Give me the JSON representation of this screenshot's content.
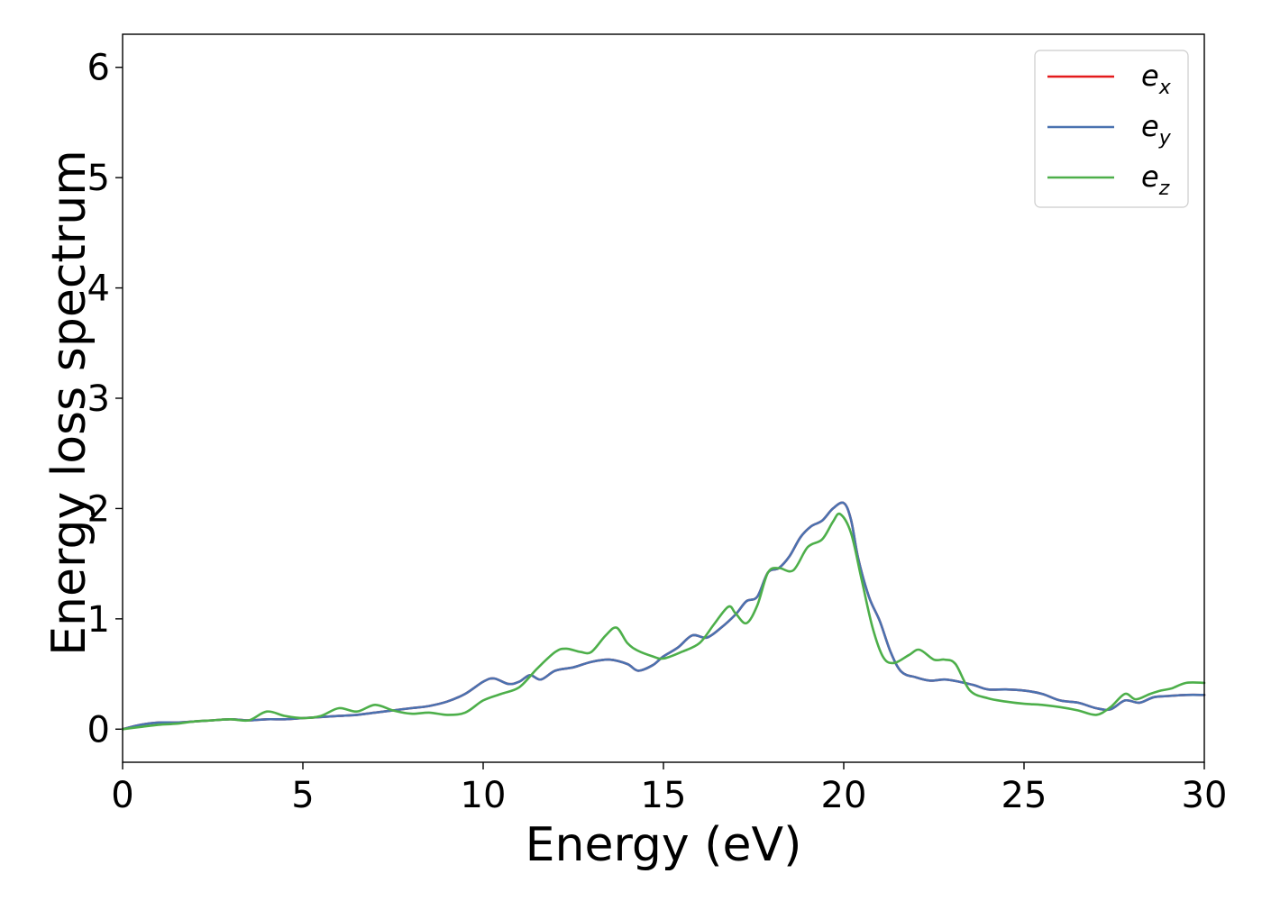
{
  "chart_data": {
    "type": "line",
    "title": "",
    "xlabel": "Energy (eV)",
    "ylabel": "Energy loss spectrum",
    "xlim": [
      0,
      30
    ],
    "ylim": [
      -0.3,
      6.3
    ],
    "xticks": [
      0,
      5,
      10,
      15,
      20,
      25,
      30
    ],
    "yticks": [
      0,
      1,
      2,
      3,
      4,
      5,
      6
    ],
    "grid": false,
    "legend_position": "top-right",
    "series": [
      {
        "name": "e",
        "subscript": "x",
        "color": "#e41a1c",
        "x": [
          0,
          0.5,
          1,
          1.5,
          2,
          2.5,
          3,
          3.5,
          4,
          4.5,
          5,
          5.5,
          6,
          6.5,
          7,
          7.5,
          8,
          8.5,
          9,
          9.5,
          10,
          10.3,
          10.7,
          11,
          11.3,
          11.6,
          12,
          12.5,
          13,
          13.5,
          14,
          14.3,
          14.7,
          15,
          15.4,
          15.8,
          16.2,
          16.6,
          17,
          17.3,
          17.6,
          17.9,
          18.2,
          18.5,
          18.8,
          19.1,
          19.4,
          19.7,
          20,
          20.2,
          20.4,
          20.7,
          21,
          21.3,
          21.6,
          22,
          22.4,
          22.8,
          23.2,
          23.6,
          24,
          24.5,
          25,
          25.5,
          26,
          26.5,
          27,
          27.4,
          27.8,
          28.2,
          28.6,
          29,
          29.5,
          30
        ],
        "y": [
          0.0,
          0.04,
          0.06,
          0.06,
          0.07,
          0.08,
          0.09,
          0.08,
          0.09,
          0.09,
          0.1,
          0.11,
          0.12,
          0.13,
          0.15,
          0.17,
          0.19,
          0.21,
          0.25,
          0.32,
          0.43,
          0.46,
          0.41,
          0.43,
          0.49,
          0.45,
          0.53,
          0.56,
          0.61,
          0.63,
          0.59,
          0.53,
          0.58,
          0.66,
          0.74,
          0.85,
          0.83,
          0.92,
          1.04,
          1.16,
          1.2,
          1.42,
          1.46,
          1.57,
          1.74,
          1.84,
          1.89,
          2.0,
          2.05,
          1.9,
          1.55,
          1.2,
          0.98,
          0.7,
          0.52,
          0.47,
          0.44,
          0.45,
          0.43,
          0.4,
          0.36,
          0.36,
          0.35,
          0.32,
          0.26,
          0.24,
          0.19,
          0.18,
          0.26,
          0.24,
          0.29,
          0.3,
          0.31,
          0.31
        ]
      },
      {
        "name": "e",
        "subscript": "y",
        "color": "#4a72b0",
        "x": [
          0,
          0.5,
          1,
          1.5,
          2,
          2.5,
          3,
          3.5,
          4,
          4.5,
          5,
          5.5,
          6,
          6.5,
          7,
          7.5,
          8,
          8.5,
          9,
          9.5,
          10,
          10.3,
          10.7,
          11,
          11.3,
          11.6,
          12,
          12.5,
          13,
          13.5,
          14,
          14.3,
          14.7,
          15,
          15.4,
          15.8,
          16.2,
          16.6,
          17,
          17.3,
          17.6,
          17.9,
          18.2,
          18.5,
          18.8,
          19.1,
          19.4,
          19.7,
          20,
          20.2,
          20.4,
          20.7,
          21,
          21.3,
          21.6,
          22,
          22.4,
          22.8,
          23.2,
          23.6,
          24,
          24.5,
          25,
          25.5,
          26,
          26.5,
          27,
          27.4,
          27.8,
          28.2,
          28.6,
          29,
          29.5,
          30
        ],
        "y": [
          0.0,
          0.04,
          0.06,
          0.06,
          0.07,
          0.08,
          0.09,
          0.08,
          0.09,
          0.09,
          0.1,
          0.11,
          0.12,
          0.13,
          0.15,
          0.17,
          0.19,
          0.21,
          0.25,
          0.32,
          0.43,
          0.46,
          0.41,
          0.43,
          0.49,
          0.45,
          0.53,
          0.56,
          0.61,
          0.63,
          0.59,
          0.53,
          0.58,
          0.66,
          0.74,
          0.85,
          0.83,
          0.92,
          1.04,
          1.16,
          1.2,
          1.42,
          1.46,
          1.57,
          1.74,
          1.84,
          1.89,
          2.0,
          2.05,
          1.9,
          1.55,
          1.2,
          0.98,
          0.7,
          0.52,
          0.47,
          0.44,
          0.45,
          0.43,
          0.4,
          0.36,
          0.36,
          0.35,
          0.32,
          0.26,
          0.24,
          0.19,
          0.18,
          0.26,
          0.24,
          0.29,
          0.3,
          0.31,
          0.31
        ]
      },
      {
        "name": "e",
        "subscript": "z",
        "color": "#4daf4a",
        "x": [
          0,
          0.5,
          1,
          1.5,
          2,
          2.5,
          3,
          3.5,
          4,
          4.5,
          5,
          5.5,
          6,
          6.5,
          7,
          7.5,
          8,
          8.5,
          9,
          9.5,
          10,
          10.5,
          11,
          11.5,
          12,
          12.3,
          12.7,
          13,
          13.4,
          13.7,
          14,
          14.3,
          14.7,
          15,
          15.5,
          16,
          16.4,
          16.8,
          17,
          17.3,
          17.6,
          17.9,
          18.2,
          18.6,
          19,
          19.4,
          19.7,
          19.9,
          20.2,
          20.5,
          20.8,
          21.1,
          21.4,
          21.8,
          22.1,
          22.5,
          22.8,
          23.1,
          23.5,
          24,
          24.5,
          25,
          25.5,
          26,
          26.5,
          27,
          27.4,
          27.8,
          28.1,
          28.5,
          28.8,
          29.1,
          29.5,
          30
        ],
        "y": [
          0.0,
          0.02,
          0.04,
          0.05,
          0.07,
          0.08,
          0.09,
          0.08,
          0.16,
          0.12,
          0.1,
          0.12,
          0.19,
          0.16,
          0.22,
          0.17,
          0.14,
          0.15,
          0.13,
          0.15,
          0.26,
          0.32,
          0.38,
          0.55,
          0.7,
          0.73,
          0.7,
          0.7,
          0.85,
          0.92,
          0.78,
          0.71,
          0.66,
          0.64,
          0.7,
          0.78,
          0.95,
          1.11,
          1.05,
          0.96,
          1.12,
          1.42,
          1.46,
          1.44,
          1.65,
          1.72,
          1.88,
          1.95,
          1.78,
          1.35,
          0.92,
          0.65,
          0.6,
          0.67,
          0.72,
          0.63,
          0.63,
          0.59,
          0.35,
          0.28,
          0.25,
          0.23,
          0.22,
          0.2,
          0.17,
          0.13,
          0.2,
          0.32,
          0.27,
          0.32,
          0.35,
          0.37,
          0.42,
          0.42
        ]
      }
    ]
  }
}
